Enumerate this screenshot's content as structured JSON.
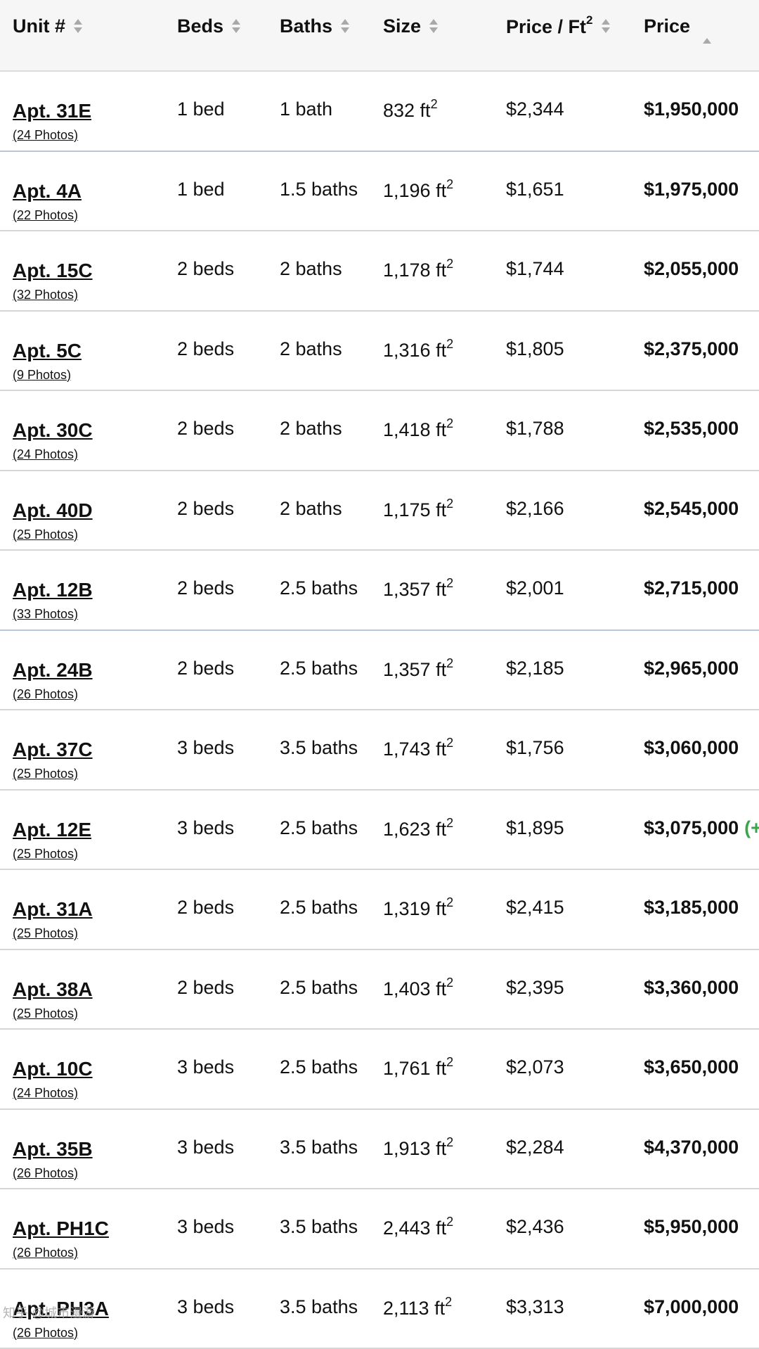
{
  "header": {
    "unit": "Unit #",
    "beds": "Beds",
    "baths": "Baths",
    "size": "Size",
    "price_per_ft": "Price / Ft",
    "price_per_ft_sup": "2",
    "price": "Price"
  },
  "sup": "2",
  "rows": [
    {
      "unit": "Apt. 31E",
      "photos": "(24 Photos)",
      "beds": "1 bed",
      "baths": "1 bath",
      "size": "832 ft",
      "ppf": "$2,344",
      "price": "$1,950,000"
    },
    {
      "unit": "Apt. 4A",
      "photos": "(22 Photos)",
      "beds": "1 bed",
      "baths": "1.5 baths",
      "size": "1,196 ft",
      "ppf": "$1,651",
      "price": "$1,975,000"
    },
    {
      "unit": "Apt. 15C",
      "photos": "(32 Photos)",
      "beds": "2 beds",
      "baths": "2 baths",
      "size": "1,178 ft",
      "ppf": "$1,744",
      "price": "$2,055,000"
    },
    {
      "unit": "Apt. 5C",
      "photos": "(9 Photos)",
      "beds": "2 beds",
      "baths": "2 baths",
      "size": "1,316 ft",
      "ppf": "$1,805",
      "price": "$2,375,000"
    },
    {
      "unit": "Apt. 30C",
      "photos": "(24 Photos)",
      "beds": "2 beds",
      "baths": "2 baths",
      "size": "1,418 ft",
      "ppf": "$1,788",
      "price": "$2,535,000"
    },
    {
      "unit": "Apt. 40D",
      "photos": "(25 Photos)",
      "beds": "2 beds",
      "baths": "2 baths",
      "size": "1,175 ft",
      "ppf": "$2,166",
      "price": "$2,545,000"
    },
    {
      "unit": "Apt. 12B",
      "photos": "(33 Photos)",
      "beds": "2 beds",
      "baths": "2.5 baths",
      "size": "1,357 ft",
      "ppf": "$2,001",
      "price": "$2,715,000"
    },
    {
      "unit": "Apt. 24B",
      "photos": "(26 Photos)",
      "beds": "2 beds",
      "baths": "2.5 baths",
      "size": "1,357 ft",
      "ppf": "$2,185",
      "price": "$2,965,000"
    },
    {
      "unit": "Apt. 37C",
      "photos": "(25 Photos)",
      "beds": "3 beds",
      "baths": "3.5 baths",
      "size": "1,743 ft",
      "ppf": "$1,756",
      "price": "$3,060,000"
    },
    {
      "unit": "Apt. 12E",
      "photos": "(25 Photos)",
      "beds": "3 beds",
      "baths": "2.5 baths",
      "size": "1,623 ft",
      "ppf": "$1,895",
      "price": "$3,075,000",
      "change": "(+"
    },
    {
      "unit": "Apt. 31A",
      "photos": "(25 Photos)",
      "beds": "2 beds",
      "baths": "2.5 baths",
      "size": "1,319 ft",
      "ppf": "$2,415",
      "price": "$3,185,000"
    },
    {
      "unit": "Apt. 38A",
      "photos": "(25 Photos)",
      "beds": "2 beds",
      "baths": "2.5 baths",
      "size": "1,403 ft",
      "ppf": "$2,395",
      "price": "$3,360,000"
    },
    {
      "unit": "Apt. 10C",
      "photos": "(24 Photos)",
      "beds": "3 beds",
      "baths": "2.5 baths",
      "size": "1,761 ft",
      "ppf": "$2,073",
      "price": "$3,650,000"
    },
    {
      "unit": "Apt. 35B",
      "photos": "(26 Photos)",
      "beds": "3 beds",
      "baths": "3.5 baths",
      "size": "1,913 ft",
      "ppf": "$2,284",
      "price": "$4,370,000"
    },
    {
      "unit": "Apt. PH1C",
      "photos": "(26 Photos)",
      "beds": "3 beds",
      "baths": "3.5 baths",
      "size": "2,443 ft",
      "ppf": "$2,436",
      "price": "$5,950,000"
    },
    {
      "unit": "Apt. PH3A",
      "photos": "(26 Photos)",
      "beds": "3 beds",
      "baths": "3.5 baths",
      "size": "2,113 ft",
      "ppf": "$3,313",
      "price": "$7,000,000"
    }
  ],
  "colors": {
    "change": "#3aa54a",
    "header_bg": "#f6f6f6"
  },
  "watermark": "知乎 @城市漫游"
}
